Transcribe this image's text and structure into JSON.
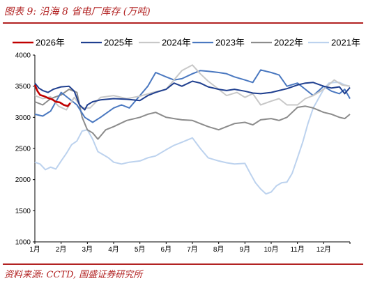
{
  "header": {
    "title": "图表 9:  沿海 8 省电厂库存 (万吨)"
  },
  "footer": {
    "source": "资料来源:  CCTD, 国盛证券研究所"
  },
  "chart_data": {
    "type": "line",
    "title": "图表 9:  沿海 8 省电厂库存 (万吨)",
    "xlabel": "",
    "ylabel": "",
    "x_ticks": [
      "1月",
      "2月",
      "3月",
      "4月",
      "5月",
      "6月",
      "7月",
      "8月",
      "9月",
      "10月",
      "11月",
      "12月"
    ],
    "y_ticks": [
      1000,
      1500,
      2000,
      2500,
      3000,
      3500,
      4000
    ],
    "ylim": [
      1000,
      4000
    ],
    "xlim": [
      1,
      13
    ],
    "grid": false,
    "legend_position": "top",
    "series": [
      {
        "name": "2026年",
        "color": "#c00000",
        "x": [
          1.0,
          1.1,
          1.2,
          1.35,
          1.5,
          1.65,
          1.8,
          1.95,
          2.1,
          2.25,
          2.35
        ],
        "y": [
          3520,
          3420,
          3360,
          3340,
          3310,
          3290,
          3250,
          3240,
          3200,
          3180,
          3230
        ]
      },
      {
        "name": "2025年",
        "color": "#1f3f8f",
        "x": [
          1.0,
          1.15,
          1.3,
          1.5,
          1.7,
          2.0,
          2.3,
          2.5,
          2.7,
          2.9,
          3.0,
          3.2,
          3.5,
          4.0,
          4.5,
          5.0,
          5.3,
          5.6,
          6.0,
          6.3,
          6.6,
          7.0,
          7.3,
          7.6,
          8.0,
          8.3,
          8.6,
          9.0,
          9.3,
          9.6,
          10.0,
          10.3,
          10.6,
          11.0,
          11.3,
          11.6,
          12.0,
          12.3,
          12.6,
          12.8,
          13.0
        ],
        "y": [
          3550,
          3470,
          3430,
          3400,
          3450,
          3490,
          3500,
          3420,
          3200,
          3120,
          3200,
          3250,
          3280,
          3300,
          3290,
          3270,
          3350,
          3400,
          3450,
          3550,
          3500,
          3580,
          3550,
          3490,
          3450,
          3430,
          3450,
          3420,
          3390,
          3380,
          3400,
          3430,
          3460,
          3520,
          3550,
          3560,
          3500,
          3470,
          3490,
          3380,
          3480
        ]
      },
      {
        "name": "2024年",
        "color": "#c8c8c8",
        "x": [
          1.0,
          1.3,
          1.6,
          1.9,
          2.2,
          2.5,
          2.8,
          3.1,
          3.5,
          4.0,
          4.5,
          5.0,
          5.5,
          6.0,
          6.3,
          6.6,
          7.0,
          7.3,
          7.6,
          8.0,
          8.3,
          8.7,
          9.0,
          9.3,
          9.6,
          10.0,
          10.3,
          10.6,
          11.0,
          11.3,
          11.6,
          12.0,
          12.4,
          12.7,
          13.0
        ],
        "y": [
          3350,
          3300,
          3330,
          3180,
          3120,
          3320,
          3150,
          3150,
          3320,
          3350,
          3300,
          3340,
          3400,
          3450,
          3600,
          3750,
          3840,
          3700,
          3580,
          3450,
          3350,
          3400,
          3320,
          3380,
          3200,
          3260,
          3300,
          3200,
          3200,
          3300,
          3350,
          3450,
          3600,
          3520,
          3500
        ]
      },
      {
        "name": "2023年",
        "color": "#4a78c0",
        "x": [
          1.0,
          1.3,
          1.6,
          2.0,
          2.3,
          2.6,
          2.9,
          3.2,
          3.5,
          4.0,
          4.3,
          4.6,
          5.0,
          5.3,
          5.6,
          6.0,
          6.3,
          6.6,
          7.0,
          7.3,
          7.6,
          8.0,
          8.3,
          8.6,
          9.0,
          9.3,
          9.6,
          10.0,
          10.3,
          10.6,
          11.0,
          11.3,
          11.6,
          12.0,
          12.3,
          12.6,
          12.8,
          13.0
        ],
        "y": [
          3050,
          3020,
          3100,
          3400,
          3300,
          3200,
          3000,
          2920,
          3000,
          3150,
          3200,
          3150,
          3350,
          3500,
          3720,
          3650,
          3600,
          3620,
          3700,
          3750,
          3740,
          3720,
          3700,
          3650,
          3600,
          3560,
          3760,
          3720,
          3680,
          3500,
          3550,
          3450,
          3350,
          3500,
          3420,
          3380,
          3450,
          3300
        ]
      },
      {
        "name": "2022年",
        "color": "#8c8c8c",
        "x": [
          1.0,
          1.3,
          1.6,
          2.0,
          2.3,
          2.6,
          2.8,
          3.0,
          3.2,
          3.4,
          3.7,
          4.0,
          4.5,
          5.0,
          5.3,
          5.6,
          6.0,
          6.3,
          6.6,
          7.0,
          7.3,
          7.6,
          8.0,
          8.3,
          8.6,
          9.0,
          9.3,
          9.6,
          10.0,
          10.3,
          10.6,
          11.0,
          11.3,
          11.6,
          12.0,
          12.3,
          12.6,
          12.8,
          13.0
        ],
        "y": [
          3250,
          3200,
          3300,
          3360,
          3450,
          3400,
          3000,
          2800,
          2750,
          2650,
          2800,
          2850,
          2950,
          3000,
          3050,
          3080,
          3000,
          2980,
          2960,
          2950,
          2900,
          2850,
          2800,
          2850,
          2900,
          2920,
          2880,
          2960,
          2980,
          2950,
          3000,
          3160,
          3180,
          3150,
          3080,
          3050,
          3000,
          2980,
          3050
        ]
      },
      {
        "name": "2021年",
        "color": "#bcd2ee",
        "x": [
          1.0,
          1.2,
          1.4,
          1.6,
          1.8,
          2.0,
          2.2,
          2.4,
          2.6,
          2.8,
          3.0,
          3.2,
          3.4,
          3.6,
          3.8,
          4.0,
          4.3,
          4.6,
          5.0,
          5.3,
          5.6,
          6.0,
          6.3,
          6.6,
          7.0,
          7.3,
          7.6,
          8.0,
          8.3,
          8.6,
          9.0,
          9.2,
          9.4,
          9.6,
          9.8,
          10.0,
          10.2,
          10.4,
          10.6,
          10.8,
          11.0,
          11.2,
          11.4,
          11.6,
          11.8,
          12.0,
          12.2,
          12.4,
          12.6,
          12.8,
          13.0
        ],
        "y": [
          2280,
          2250,
          2160,
          2200,
          2170,
          2300,
          2420,
          2560,
          2620,
          2780,
          2800,
          2650,
          2450,
          2400,
          2350,
          2280,
          2250,
          2280,
          2300,
          2350,
          2380,
          2480,
          2550,
          2600,
          2670,
          2500,
          2350,
          2300,
          2270,
          2250,
          2260,
          2100,
          1950,
          1850,
          1770,
          1800,
          1900,
          1950,
          1960,
          2100,
          2350,
          2600,
          2900,
          3150,
          3300,
          3450,
          3550,
          3560,
          3560,
          3520,
          3500
        ]
      }
    ]
  }
}
